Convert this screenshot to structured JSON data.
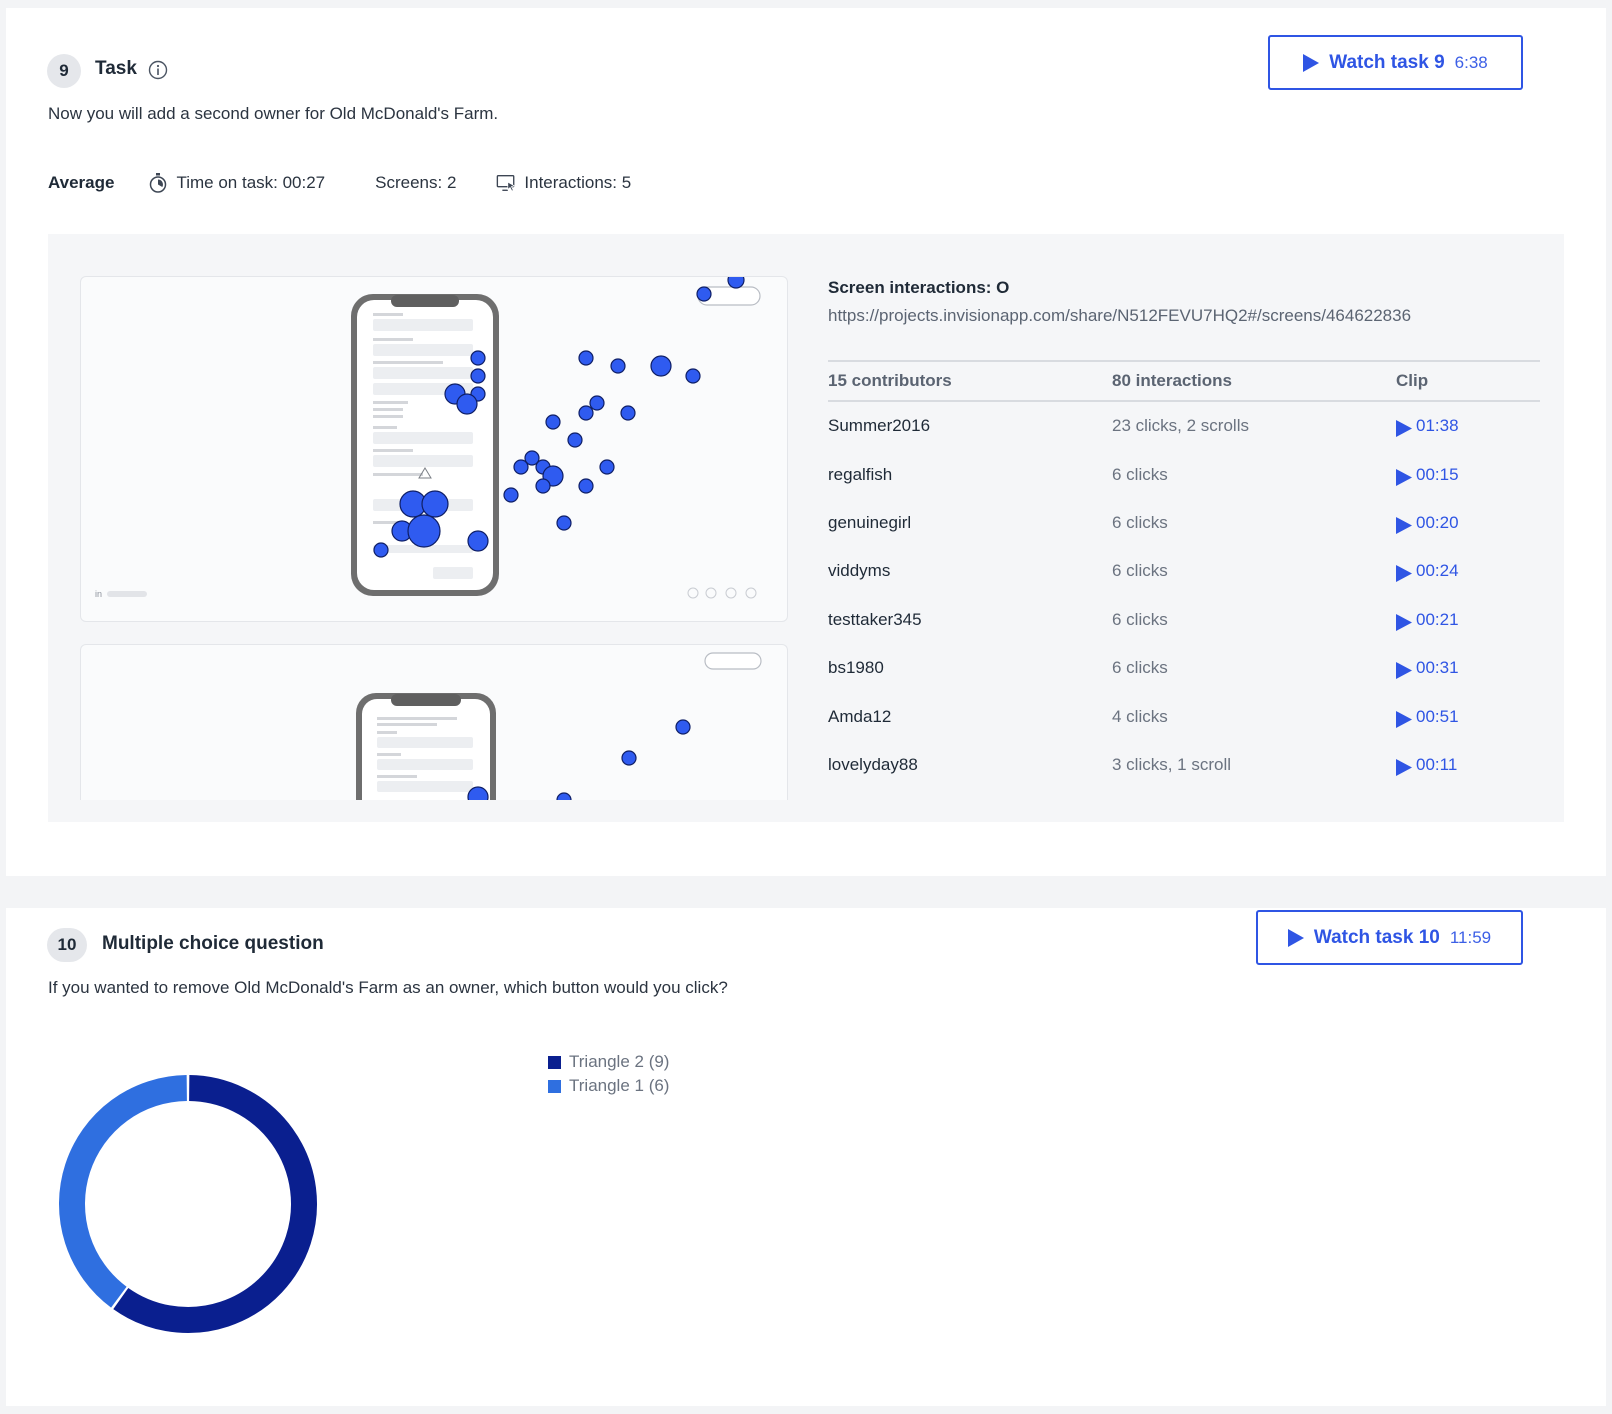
{
  "task9": {
    "number": "9",
    "title": "Task",
    "prompt": "Now you will add a second owner for Old McDonald's Farm.",
    "watch_label": "Watch task 9",
    "watch_duration": "6:38",
    "average_label": "Average",
    "time_on_task": "Time on task:  00:27",
    "screens": "Screens:  2",
    "interactions": "Interactions:  5",
    "screen_interactions_title": "Screen interactions: O",
    "screen_url": "https://projects.invisionapp.com/share/N512FEVU7HQ2#/screens/464622836",
    "table": {
      "headers": [
        "15 contributors",
        "80 interactions",
        "Clip"
      ],
      "rows": [
        {
          "name": "Summer2016",
          "interactions": "23 clicks, 2 scrolls",
          "clip": "01:38"
        },
        {
          "name": "regalfish",
          "interactions": "6 clicks",
          "clip": "00:15"
        },
        {
          "name": "genuinegirl",
          "interactions": "6 clicks",
          "clip": "00:20"
        },
        {
          "name": "viddyms",
          "interactions": "6 clicks",
          "clip": "00:24"
        },
        {
          "name": "testtaker345",
          "interactions": "6 clicks",
          "clip": "00:21"
        },
        {
          "name": "bs1980",
          "interactions": "6 clicks",
          "clip": "00:31"
        },
        {
          "name": "Amda12",
          "interactions": "4 clicks",
          "clip": "00:51"
        },
        {
          "name": "lovelyday88",
          "interactions": "3 clicks, 1 scroll",
          "clip": "00:11"
        }
      ]
    }
  },
  "task10": {
    "number": "10",
    "title": "Multiple choice question",
    "prompt": "If you wanted to remove Old McDonald's Farm as an owner, which button would you click?",
    "watch_label": "Watch task 10",
    "watch_duration": "11:59",
    "legend": [
      "Triangle 2 (9)",
      "Triangle 1 (6)"
    ]
  },
  "chart_data": {
    "type": "pie",
    "variant": "donut",
    "categories": [
      "Triangle 2",
      "Triangle 1"
    ],
    "values": [
      9,
      6
    ],
    "colors": [
      "#0a1f8f",
      "#2f6fe0"
    ],
    "title": "",
    "legend_placement": "right"
  },
  "colors": {
    "accent": "#2f55e4",
    "heatmap_dot": "#2f5bf0"
  },
  "icons": {
    "info": "info-icon",
    "timer": "stopwatch-icon",
    "interactions": "monitor-cursor-icon",
    "play": "play-icon"
  }
}
